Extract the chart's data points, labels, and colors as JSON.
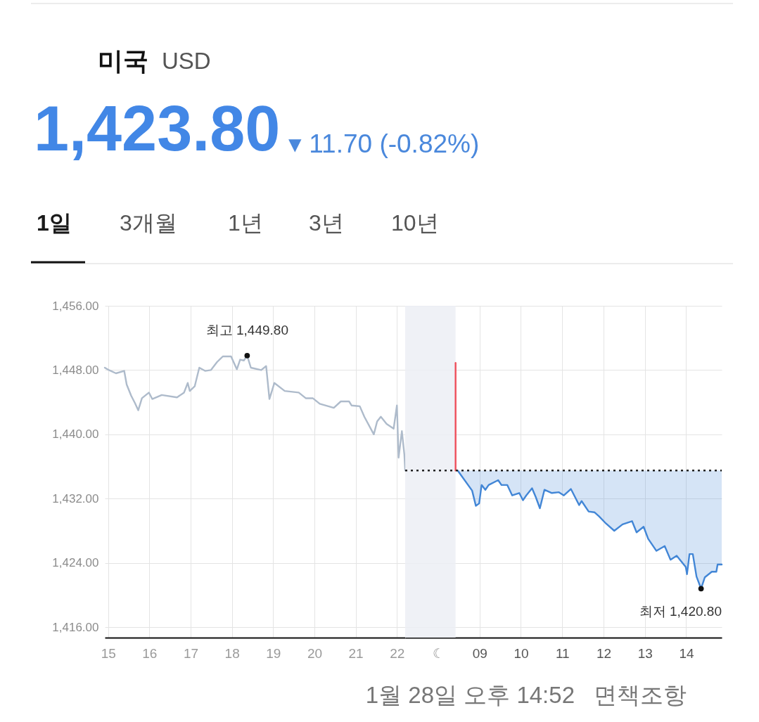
{
  "chart_data": [
    {
      "type": "line",
      "title": "미국",
      "subtitle": "USD",
      "annotations": [
        "1,423.80",
        "▾ 11.70 (-0.82%)",
        "1일",
        "3개월",
        "1년",
        "3년",
        "10년",
        "1월 28일 오후 14:52",
        "면책조항",
        {
          "text": "최고 1,449.80",
          "x": 18.37,
          "y": 1449.8
        }
      ],
      "xlim": [
        14.92,
        22.2
      ],
      "xticks": [
        15,
        16,
        17,
        18,
        19,
        20,
        21,
        22
      ],
      "ylim": [
        1414.7,
        1456
      ],
      "yticks": [
        {
          "value": 1416,
          "label": "1,416.00"
        },
        {
          "value": 1424,
          "label": "1,424.00"
        },
        {
          "value": 1432,
          "label": "1,432.00"
        },
        {
          "value": 1440,
          "label": "1,440.00"
        },
        {
          "value": 1448,
          "label": "1,448.00"
        },
        {
          "value": 1456,
          "label": "1,456.00"
        }
      ],
      "grid": true,
      "series": [
        {
          "color": "#aebbcb",
          "x": [
            14.92,
            15.02,
            15.19,
            15.39,
            15.45,
            15.56,
            15.65,
            15.73,
            15.82,
            15.99,
            16.07,
            16.3,
            16.67,
            16.84,
            16.93,
            16.98,
            17.1,
            17.21,
            17.35,
            17.49,
            17.64,
            17.78,
            17.98,
            18.12,
            18.2,
            18.29,
            18.37,
            18.46,
            18.71,
            18.83,
            18.91,
            19.03,
            19.28,
            19.62,
            19.79,
            19.96,
            20.13,
            20.47,
            20.64,
            20.84,
            20.9,
            21.1,
            21.21,
            21.44,
            21.52,
            21.61,
            21.75,
            21.92,
            22.0,
            22.04,
            22.12,
            22.18,
            22.2
          ],
          "values": [
            1448.3,
            1448.0,
            1447.6,
            1447.9,
            1446.2,
            1444.8,
            1443.9,
            1443.0,
            1444.5,
            1445.2,
            1444.4,
            1444.9,
            1444.6,
            1445.2,
            1446.4,
            1445.4,
            1446.0,
            1448.3,
            1447.9,
            1448.0,
            1449.0,
            1449.7,
            1449.7,
            1448.1,
            1449.3,
            1449.2,
            1449.8,
            1448.3,
            1448.0,
            1448.5,
            1444.4,
            1446.4,
            1445.4,
            1445.2,
            1444.5,
            1444.5,
            1443.8,
            1443.3,
            1444.1,
            1444.1,
            1443.6,
            1443.5,
            1442.2,
            1440.0,
            1441.6,
            1442.2,
            1441.3,
            1440.7,
            1443.6,
            1437.1,
            1440.4,
            1437.5,
            1435.5
          ]
        },
        {
          "type": "scatter",
          "marker": "circle",
          "color": "#111111",
          "x": [
            18.37
          ],
          "values": [
            1449.8
          ]
        }
      ]
    },
    {
      "type": "line",
      "annotations": [
        {
          "text": "최저 1,420.80",
          "x": 14.36,
          "y": 1420.8
        }
      ],
      "xlim": [
        7.2,
        14.86
      ],
      "xticks": [
        {
          "value": 8,
          "label": "☾"
        },
        {
          "value": 9,
          "label": "09"
        },
        10,
        11,
        12,
        13,
        14
      ],
      "ylim": [
        1414.7,
        1456
      ],
      "yticks": [
        1416,
        1424,
        1432,
        1440,
        1448,
        1456
      ],
      "tick_labels": "x",
      "grid": true,
      "series": [
        {
          "color": "#4286d6",
          "x": [
            8.47,
            8.82,
            8.91,
            8.99,
            9.05,
            9.14,
            9.22,
            9.45,
            9.53,
            9.67,
            9.79,
            9.96,
            10.05,
            10.13,
            10.27,
            10.36,
            10.46,
            10.57,
            10.75,
            10.92,
            11.04,
            11.21,
            11.41,
            11.47,
            11.64,
            11.78,
            11.89,
            12.06,
            12.26,
            12.46,
            12.69,
            12.8,
            12.97,
            13.08,
            13.28,
            13.48,
            13.62,
            13.77,
            13.99,
            14.02,
            14.08,
            14.16,
            14.25,
            14.36,
            14.45,
            14.62,
            14.73,
            14.76,
            14.86
          ],
          "values": [
            1435.5,
            1433.0,
            1431.1,
            1431.4,
            1433.7,
            1433.1,
            1433.7,
            1434.3,
            1433.7,
            1433.7,
            1432.4,
            1432.7,
            1431.8,
            1432.4,
            1433.3,
            1432.2,
            1430.8,
            1433.1,
            1432.7,
            1432.8,
            1432.4,
            1433.2,
            1431.2,
            1431.7,
            1430.4,
            1430.3,
            1429.8,
            1428.9,
            1428.0,
            1428.8,
            1429.2,
            1427.8,
            1428.5,
            1427.0,
            1425.5,
            1426.1,
            1424.4,
            1424.9,
            1423.5,
            1422.6,
            1425.1,
            1425.1,
            1422.3,
            1420.8,
            1422.2,
            1422.9,
            1422.9,
            1423.8,
            1423.8
          ],
          "lower": [
            1435.5,
            1433.0,
            1431.1,
            1431.4,
            1433.7,
            1433.1,
            1433.7,
            1434.3,
            1433.7,
            1433.7,
            1432.4,
            1432.7,
            1431.8,
            1432.4,
            1433.3,
            1432.2,
            1430.8,
            1433.1,
            1432.7,
            1432.8,
            1432.4,
            1433.2,
            1431.2,
            1431.7,
            1430.4,
            1430.3,
            1429.8,
            1428.9,
            1428.0,
            1428.8,
            1429.2,
            1427.8,
            1428.5,
            1427.0,
            1425.5,
            1426.1,
            1424.4,
            1424.9,
            1423.5,
            1422.6,
            1425.1,
            1425.1,
            1422.3,
            1420.8,
            1422.2,
            1422.9,
            1422.9,
            1423.8,
            1423.8
          ],
          "upper": [
            1435.5,
            1435.5,
            1435.5,
            1435.5,
            1435.5,
            1435.5,
            1435.5,
            1435.5,
            1435.5,
            1435.5,
            1435.5,
            1435.5,
            1435.5,
            1435.5,
            1435.5,
            1435.5,
            1435.5,
            1435.5,
            1435.5,
            1435.5,
            1435.5,
            1435.5,
            1435.5,
            1435.5,
            1435.5,
            1435.5,
            1435.5,
            1435.5,
            1435.5,
            1435.5,
            1435.5,
            1435.5,
            1435.5,
            1435.5,
            1435.5,
            1435.5,
            1435.5,
            1435.5,
            1435.5,
            1435.5,
            1435.5,
            1435.5,
            1435.5,
            1435.5,
            1435.5,
            1435.5,
            1435.5,
            1435.5,
            1435.5
          ]
        },
        {
          "color": "#ef4f5a",
          "x": [
            8.42,
            8.42
          ],
          "values": [
            1448.9,
            1435.5
          ]
        },
        {
          "type": "scatter",
          "marker": "circle",
          "color": "#111111",
          "x": [
            14.36
          ],
          "values": [
            1420.8
          ]
        }
      ],
      "ref_lines": [
        {
          "axis": "y",
          "value": 1435.5,
          "color": "#222222",
          "line_style": "dotted"
        }
      ],
      "bands": [
        {
          "axis": "x",
          "from": 7.2,
          "to": 8.42,
          "color": "#eceef4"
        }
      ]
    }
  ]
}
